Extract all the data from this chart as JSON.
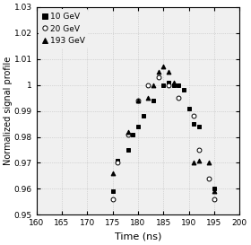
{
  "title": "",
  "xlabel": "Time (ns)",
  "ylabel": "Normalized signal profile",
  "xlim": [
    160,
    200
  ],
  "ylim": [
    0.95,
    1.03
  ],
  "xticks": [
    160,
    165,
    170,
    175,
    180,
    185,
    190,
    195,
    200
  ],
  "yticks": [
    0.95,
    0.96,
    0.97,
    0.98,
    0.99,
    1.0,
    1.01,
    1.02,
    1.03
  ],
  "ytick_labels": [
    "0.95",
    "0.96",
    "0.97",
    "0.98",
    "0.99",
    "1",
    "1.01",
    "1.02",
    "1.03"
  ],
  "series": [
    {
      "label": "10 GeV",
      "marker": "s",
      "filled": true,
      "x": [
        175,
        176,
        178,
        179,
        180,
        181,
        183,
        185,
        186,
        187,
        188,
        189,
        190,
        191,
        192,
        195
      ],
      "y": [
        0.959,
        0.971,
        0.975,
        0.981,
        0.984,
        0.988,
        0.994,
        1.0,
        1.001,
        1.0,
        1.0,
        0.998,
        0.991,
        0.985,
        0.984,
        0.96
      ]
    },
    {
      "label": "20 GeV",
      "marker": "o",
      "filled": false,
      "x": [
        175,
        176,
        178,
        180,
        182,
        184,
        186,
        188,
        191,
        192,
        194,
        195
      ],
      "y": [
        0.956,
        0.97,
        0.981,
        0.994,
        1.0,
        1.003,
        1.0,
        0.995,
        0.988,
        0.975,
        0.964,
        0.956
      ]
    },
    {
      "label": "193 GeV",
      "marker": "^",
      "filled": true,
      "x": [
        175,
        178,
        180,
        182,
        183,
        184,
        185,
        186,
        187,
        191,
        192,
        194,
        195
      ],
      "y": [
        0.966,
        0.982,
        0.994,
        0.995,
        1.0,
        1.005,
        1.007,
        1.005,
        1.001,
        0.97,
        0.971,
        0.97,
        0.959
      ]
    }
  ],
  "background_color": "#f0f0f0",
  "grid_color": "#bbbbbb",
  "legend_fontsize": 6.5,
  "tick_labelsize": 6.5,
  "xlabel_fontsize": 8,
  "ylabel_fontsize": 7,
  "markersize": 3.5,
  "markeredgewidth": 0.7
}
